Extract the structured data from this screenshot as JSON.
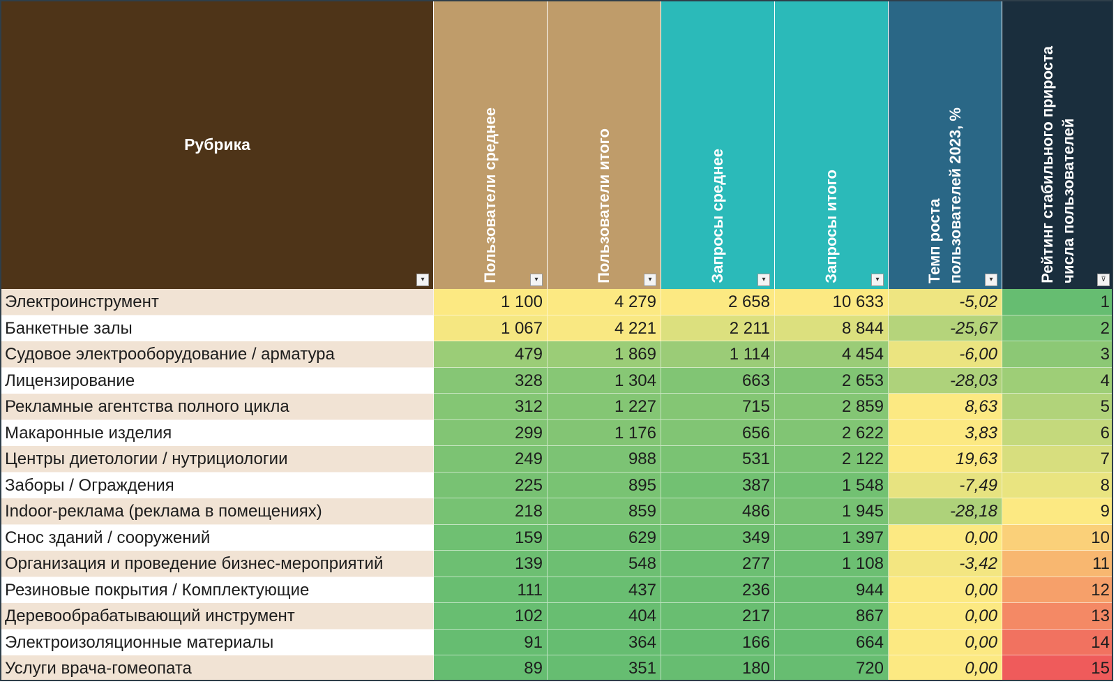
{
  "table": {
    "columns": [
      {
        "key": "rubric",
        "label": "Рубрика",
        "bg": "#4e3418"
      },
      {
        "key": "users_avg",
        "label": "Пользователи среднее",
        "bg": "#bf9c6a"
      },
      {
        "key": "users_total",
        "label": "Пользователи итого",
        "bg": "#bf9c6a"
      },
      {
        "key": "req_avg",
        "label": "Запросы среднее",
        "bg": "#2bbab9"
      },
      {
        "key": "req_total",
        "label": "Запросы итого",
        "bg": "#2bbab9"
      },
      {
        "key": "growth",
        "label": "Темп роста\nпользователей 2023, %",
        "bg": "#2a6786"
      },
      {
        "key": "rating",
        "label": "Рейтинг стабильного прироста\nчисла пользователей",
        "bg": "#1a2e3d"
      }
    ],
    "rows": [
      {
        "rubric": "Электроинструмент",
        "users_avg": "1 100",
        "users_total": "4 279",
        "req_avg": "2 658",
        "req_total": "10 633",
        "growth": "-5,02",
        "rating": "1"
      },
      {
        "rubric": "Банкетные залы",
        "users_avg": "1 067",
        "users_total": "4 221",
        "req_avg": "2 211",
        "req_total": "8 844",
        "growth": "-25,67",
        "rating": "2"
      },
      {
        "rubric": "Судовое электрооборудование / арматура",
        "users_avg": "479",
        "users_total": "1 869",
        "req_avg": "1 114",
        "req_total": "4 454",
        "growth": "-6,00",
        "rating": "3"
      },
      {
        "rubric": "Лицензирование",
        "users_avg": "328",
        "users_total": "1 304",
        "req_avg": "663",
        "req_total": "2 653",
        "growth": "-28,03",
        "rating": "4"
      },
      {
        "rubric": "Рекламные агентства полного цикла",
        "users_avg": "312",
        "users_total": "1 227",
        "req_avg": "715",
        "req_total": "2 859",
        "growth": "8,63",
        "rating": "5"
      },
      {
        "rubric": "Макаронные изделия",
        "users_avg": "299",
        "users_total": "1 176",
        "req_avg": "656",
        "req_total": "2 622",
        "growth": "3,83",
        "rating": "6"
      },
      {
        "rubric": "Центры диетологии / нутрициологии",
        "users_avg": "249",
        "users_total": "988",
        "req_avg": "531",
        "req_total": "2 122",
        "growth": "19,63",
        "rating": "7"
      },
      {
        "rubric": "Заборы / Ограждения",
        "users_avg": "225",
        "users_total": "895",
        "req_avg": "387",
        "req_total": "1 548",
        "growth": "-7,49",
        "rating": "8"
      },
      {
        "rubric": "Indoor-реклама (реклама в помещениях)",
        "users_avg": "218",
        "users_total": "859",
        "req_avg": "486",
        "req_total": "1 945",
        "growth": "-28,18",
        "rating": "9"
      },
      {
        "rubric": "Снос зданий / сооружений",
        "users_avg": "159",
        "users_total": "629",
        "req_avg": "349",
        "req_total": "1 397",
        "growth": "0,00",
        "rating": "10"
      },
      {
        "rubric": "Организация и проведение бизнес-мероприятий",
        "users_avg": "139",
        "users_total": "548",
        "req_avg": "277",
        "req_total": "1 108",
        "growth": "-3,42",
        "rating": "11"
      },
      {
        "rubric": "Резиновые покрытия / Комплектующие",
        "users_avg": "111",
        "users_total": "437",
        "req_avg": "236",
        "req_total": "944",
        "growth": "0,00",
        "rating": "12"
      },
      {
        "rubric": "Деревообрабатывающий инструмент",
        "users_avg": "102",
        "users_total": "404",
        "req_avg": "217",
        "req_total": "867",
        "growth": "0,00",
        "rating": "13"
      },
      {
        "rubric": "Электроизоляционные материалы",
        "users_avg": "91",
        "users_total": "364",
        "req_avg": "166",
        "req_total": "664",
        "growth": "0,00",
        "rating": "14"
      },
      {
        "rubric": "Услуги врача-гомеопата",
        "users_avg": "89",
        "users_total": "351",
        "req_avg": "180",
        "req_total": "720",
        "growth": "0,00",
        "rating": "15"
      }
    ],
    "colors": {
      "name_odd": "#f1e3d4",
      "name_even": "#ffffff",
      "scale_yellow": "#fce982",
      "scale_green": "#66bd71",
      "scale_orange": "#f8b56f",
      "scale_red": "#ef5b5b",
      "filter_icon": "chevron-down-icon",
      "sort_filter_icon": "filter-sort-icon"
    }
  }
}
